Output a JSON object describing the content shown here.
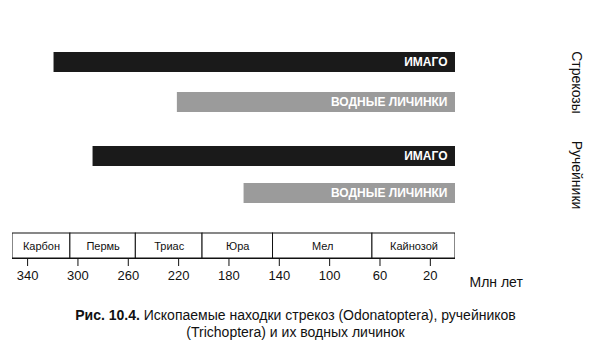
{
  "chart_data": {
    "type": "bar",
    "orientation": "horizontal",
    "caption_label": "Рис. 10.4.",
    "caption": "Ископаемые находки стрекоз (Odonatoptera), ручейников (Trichoptera) и их водных личинок",
    "xlabel": "Млн лет",
    "xlim": [
      352,
      0
    ],
    "xticks": [
      340,
      300,
      260,
      220,
      180,
      140,
      100,
      60,
      20
    ],
    "groups": [
      {
        "name": "Стрекозы",
        "bars": [
          {
            "label": "ИМАГО",
            "start": 319,
            "end": 0,
            "color": "#1a1a1a"
          },
          {
            "label": "ВОДНЫЕ ЛИЧИНКИ",
            "start": 221,
            "end": 0,
            "color": "#9b9b9b"
          }
        ]
      },
      {
        "name": "Ручейники",
        "bars": [
          {
            "label": "ИМАГО",
            "start": 288,
            "end": 0,
            "color": "#1a1a1a"
          },
          {
            "label": "ВОДНЫЕ ЛИЧИНКИ",
            "start": 168,
            "end": 0,
            "color": "#9b9b9b"
          }
        ]
      }
    ],
    "periods": [
      {
        "name": "Карбон",
        "start": 352,
        "end": 306
      },
      {
        "name": "Пермь",
        "start": 306,
        "end": 254
      },
      {
        "name": "Триас",
        "start": 254,
        "end": 201
      },
      {
        "name": "Юра",
        "start": 201,
        "end": 145
      },
      {
        "name": "Мел",
        "start": 145,
        "end": 66
      },
      {
        "name": "Кайнозой",
        "start": 66,
        "end": 0
      }
    ]
  }
}
